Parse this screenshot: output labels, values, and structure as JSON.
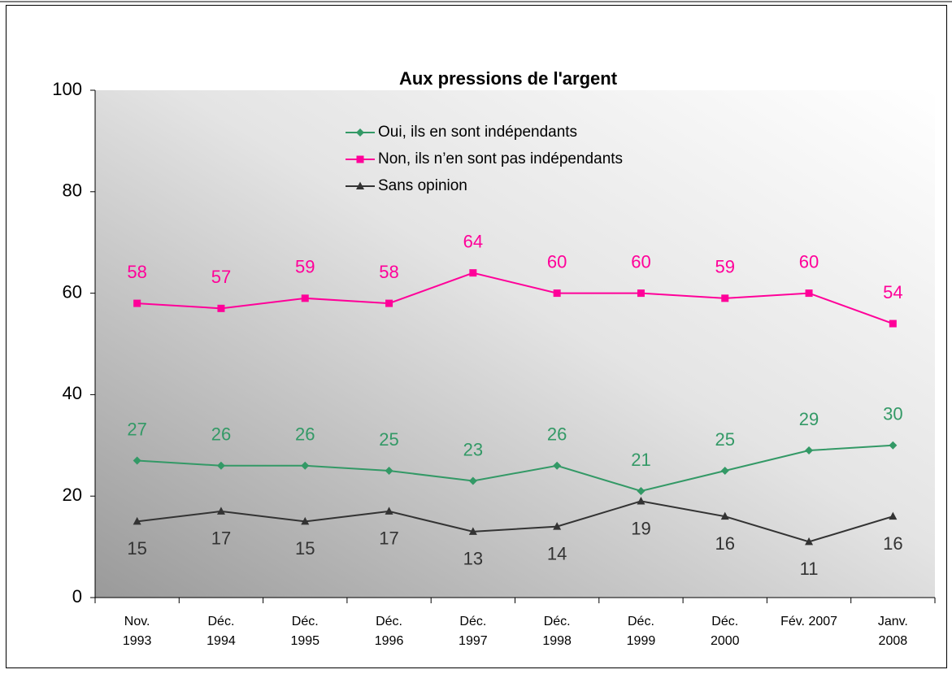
{
  "chart_data": {
    "type": "line",
    "title": "Aux pressions de l'argent",
    "categories": [
      [
        "Nov.",
        "1993"
      ],
      [
        "Déc.",
        "1994"
      ],
      [
        "Déc.",
        "1995"
      ],
      [
        "Déc.",
        "1996"
      ],
      [
        "Déc.",
        "1997"
      ],
      [
        "Déc.",
        "1998"
      ],
      [
        "Déc.",
        "1999"
      ],
      [
        "Déc.",
        "2000"
      ],
      [
        "Fév. 2007"
      ],
      [
        "Janv.",
        "2008"
      ]
    ],
    "series": [
      {
        "name": "Oui, ils en sont indépendants",
        "color": "#339966",
        "marker": "diamond",
        "values": [
          27,
          26,
          26,
          25,
          23,
          26,
          21,
          25,
          29,
          30
        ]
      },
      {
        "name": "Non, ils n’en sont pas indépendants",
        "color": "#ff0099",
        "marker": "square",
        "values": [
          58,
          57,
          59,
          58,
          64,
          60,
          60,
          59,
          60,
          54
        ]
      },
      {
        "name": "Sans opinion",
        "color": "#333333",
        "marker": "triangle",
        "values": [
          15,
          17,
          15,
          17,
          13,
          14,
          19,
          16,
          11,
          16
        ]
      }
    ],
    "ylim": [
      0,
      100
    ],
    "yticks": [
      0,
      20,
      40,
      60,
      80,
      100
    ],
    "grid": false,
    "legend": "top"
  }
}
